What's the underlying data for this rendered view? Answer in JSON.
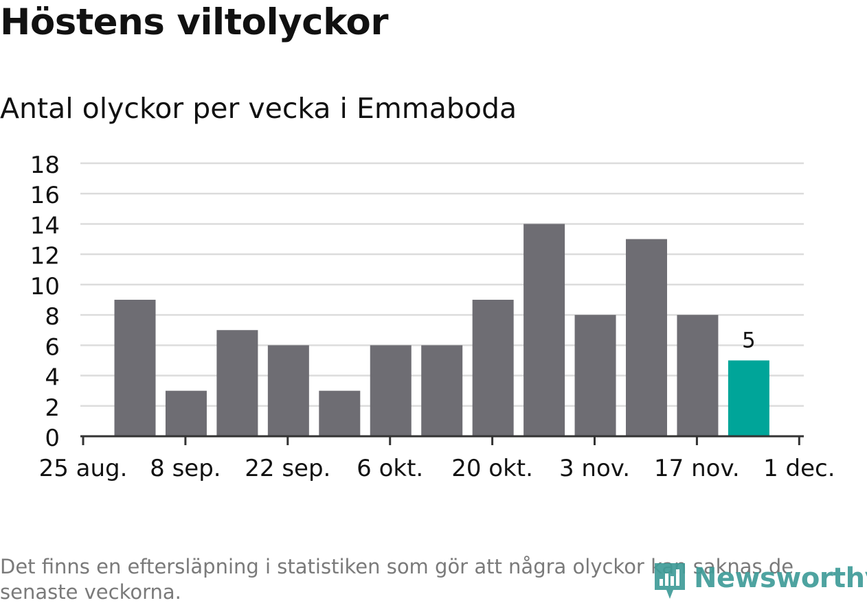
{
  "title": "Höstens viltolyckor",
  "subtitle": "Antal olyckor per vecka i Emmaboda",
  "footnote": "Det finns en eftersläpning i statistiken som gör att några olyckor kan saknas de senaste veckorna.",
  "logo": {
    "text": "Newsworthy",
    "icon": "newsworthy-logo-icon",
    "color": "#3f9c98"
  },
  "colors": {
    "bar": "#6e6d73",
    "highlight": "#00a599",
    "grid": "#dcdcdc",
    "axis": "#333333",
    "text": "#111111",
    "footnote": "#7a7a7a"
  },
  "chart_data": {
    "type": "bar",
    "title": "Höstens viltolyckor",
    "subtitle": "Antal olyckor per vecka i Emmaboda",
    "x_ticks": [
      "25 aug.",
      "8 sep.",
      "22 sep.",
      "6 okt.",
      "20 okt.",
      "3 nov.",
      "17 nov.",
      "1 dec."
    ],
    "categories": [
      "2019-08-26",
      "2019-09-02",
      "2019-09-09",
      "2019-09-16",
      "2019-09-23",
      "2019-09-30",
      "2019-10-07",
      "2019-10-14",
      "2019-10-21",
      "2019-10-28",
      "2019-11-04",
      "2019-11-11",
      "2019-11-18"
    ],
    "values": [
      9,
      3,
      7,
      6,
      3,
      6,
      6,
      9,
      14,
      8,
      13,
      8,
      5
    ],
    "highlight_index": 12,
    "data_labels": [
      {
        "index": 12,
        "text": "5"
      }
    ],
    "y_ticks": [
      0,
      2,
      4,
      6,
      8,
      10,
      12,
      14,
      16,
      18
    ],
    "ylim": [
      0,
      18
    ],
    "grid": true,
    "legend": false,
    "xlabel": "",
    "ylabel": ""
  }
}
